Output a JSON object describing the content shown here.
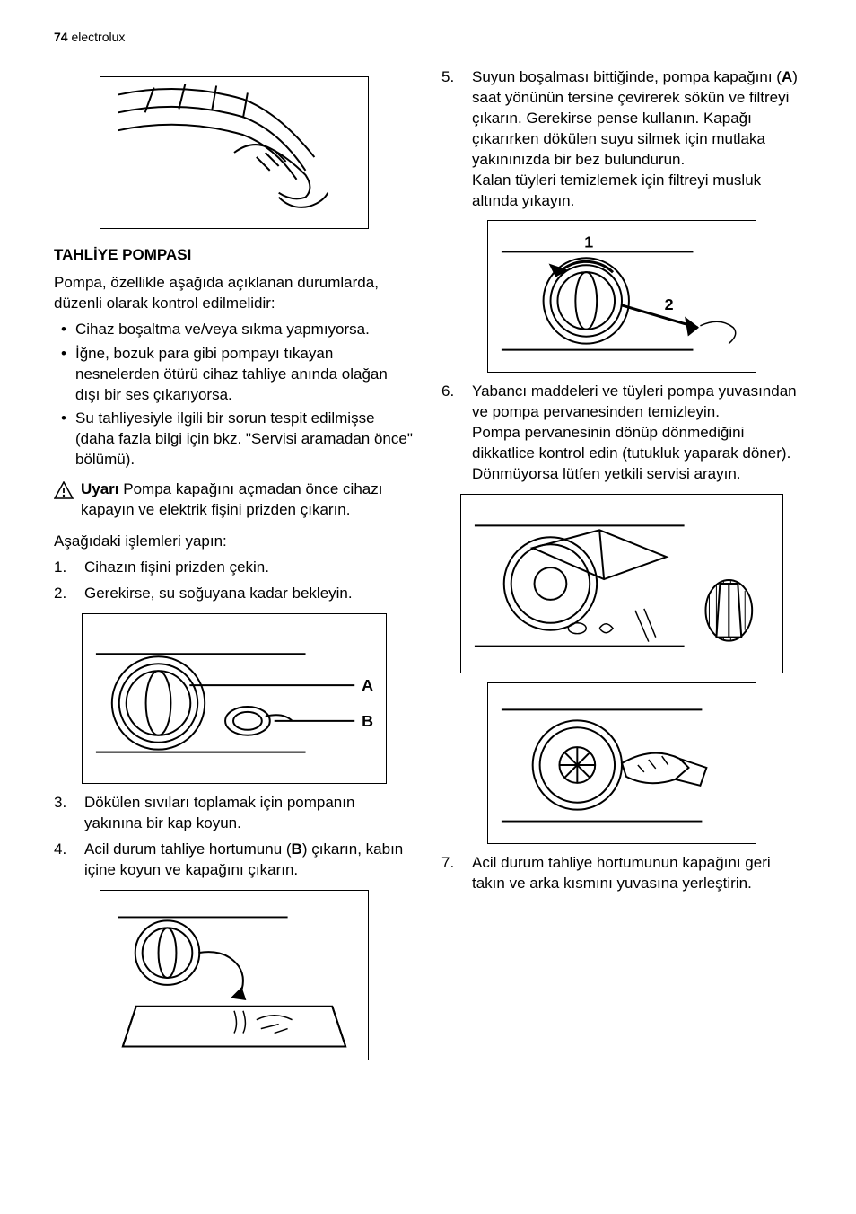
{
  "header": {
    "page_number": "74",
    "brand": "electrolux"
  },
  "left": {
    "section_title": "TAHLİYE POMPASI",
    "intro": "Pompa, özellikle aşağıda açıklanan durumlarda, düzenli olarak kontrol edilmelidir:",
    "bullets": [
      "Cihaz boşaltma ve/veya sıkma yapmıyorsa.",
      "İğne, bozuk para gibi pompayı tıkayan nesnelerden ötürü cihaz tahliye anında olağan dışı bir ses çıkarıyorsa.",
      "Su tahliyesiyle ilgili bir sorun tespit edilmişse (daha fazla bilgi için bkz. \"Servisi aramadan önce\" bölümü)."
    ],
    "warning_label": "Uyarı",
    "warning_text": "Pompa kapağını açmadan önce cihazı kapayın ve elektrik fişini prizden çıkarın.",
    "steps_intro": "Aşağıdaki işlemleri yapın:",
    "steps_1_2": [
      "Cihazın fişini prizden çekin.",
      "Gerekirse, su soğuyana kadar bekleyin."
    ],
    "fig_labels": {
      "A": "A",
      "B": "B"
    },
    "steps_3_4": [
      "Dökülen sıvıları toplamak için pompanın yakınına bir kap koyun.",
      "Acil durum tahliye hortumunu (<b>B</b>) çıkarın, kabın içine koyun ve kapağını çıkarın."
    ]
  },
  "right": {
    "step5": "Suyun boşalması bittiğinde, pompa kapağını (<b>A</b>) saat yönünün tersine çevirerek sökün ve filtreyi çıkarın. Gerekirse pense kullanın. Kapağı çıkarırken dökülen suyu silmek için mutlaka yakınınızda bir bez bulundurun.<br>Kalan tüyleri temizlemek için filtreyi musluk altında yıkayın.",
    "fig_labels": {
      "one": "1",
      "two": "2"
    },
    "step6": "Yabancı maddeleri ve tüyleri pompa yuvasından ve pompa pervanesinden temizleyin.<br>Pompa pervanesinin dönüp dönmediğini dikkatlice kontrol edin (tutukluk yaparak döner). Dönmüyorsa lütfen yetkili servisi arayın.",
    "step7": "Acil durum tahliye hortumunun kapağını geri takın ve arka kısmını yuvasına yerleştirin."
  }
}
